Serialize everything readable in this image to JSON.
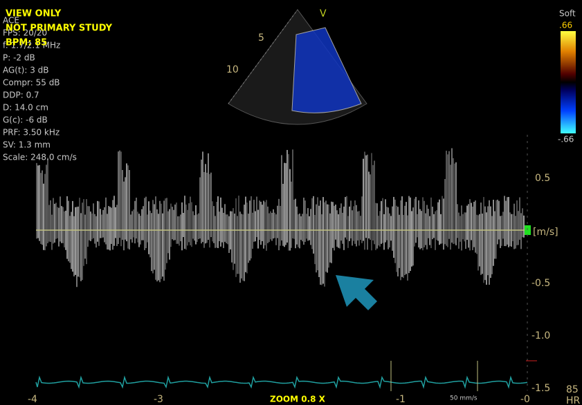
{
  "overlay": {
    "warnings": [
      "VIEW ONLY",
      "NOT PRIMARY STUDY",
      "BPM: 85"
    ],
    "parameters": [
      "ACE",
      "FPS: 20/20",
      "f: 1.7/2.1 MHz",
      "P: -2 dB",
      "AG(t): 3 dB",
      "Compr: 55 dB",
      "DDP: 0.7",
      "D: 14.0 cm",
      "G(c): -6 dB",
      "PRF: 3.50 kHz",
      "SV: 1.3 mm",
      "Scale: 248.0 cm/s"
    ]
  },
  "sector": {
    "mode": "V",
    "depth_labels": [
      "5",
      "10"
    ]
  },
  "color_bar": {
    "title": "Soft",
    "top": ".66",
    "bottom": "-.66"
  },
  "velocity_scale": {
    "labels": [
      "0.5",
      "[m/s]",
      "-0.5",
      "-1.0",
      "-1.5"
    ]
  },
  "time_axis": {
    "labels": [
      "-4",
      "-3",
      "-1",
      "-0"
    ]
  },
  "footer": {
    "zoom": "ZOOM 0.8 X",
    "sweep": "50 mm/s",
    "hr_value": "85",
    "hr_label": "HR"
  }
}
